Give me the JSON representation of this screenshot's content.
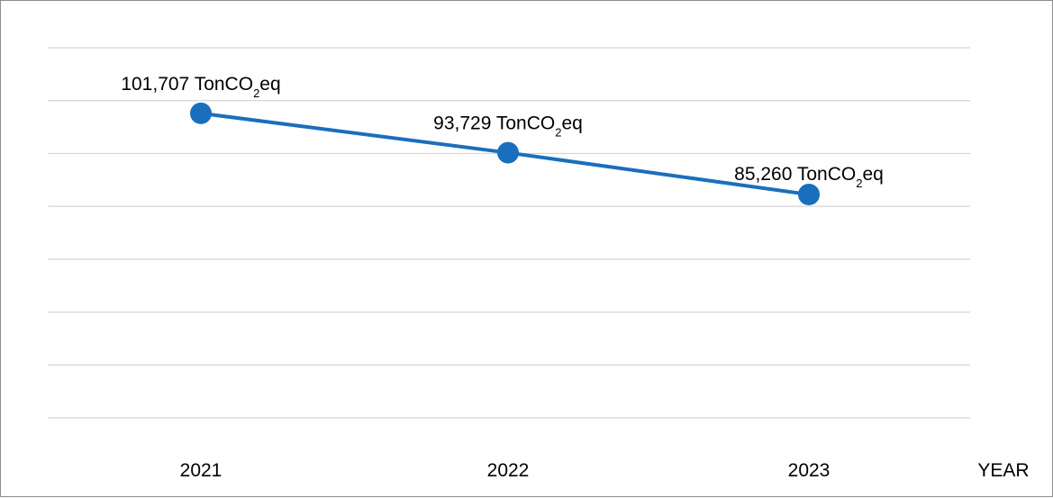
{
  "chart_data": {
    "type": "line",
    "categories": [
      "2021",
      "2022",
      "2023"
    ],
    "series": [
      {
        "values": [
          101707,
          93729,
          85260
        ],
        "color": "#1a6fbd",
        "labels": [
          "101,707",
          "93,729",
          "85,260"
        ]
      }
    ],
    "unit": {
      "prefix": "TonCO",
      "subscript": "2",
      "suffix": "eq"
    },
    "xlabel": "YEAR",
    "ylabel": "",
    "ylim": [
      40000,
      115000
    ],
    "grid": true,
    "legend": false
  }
}
